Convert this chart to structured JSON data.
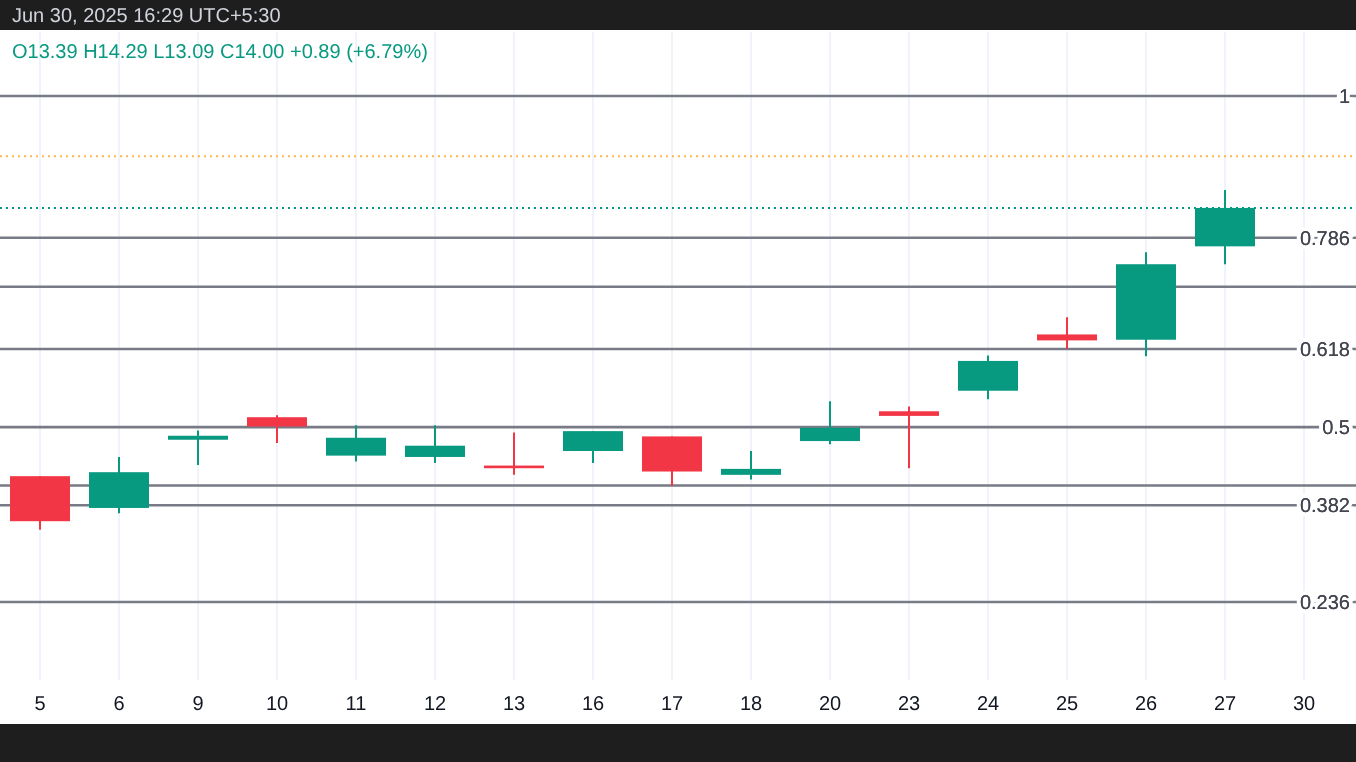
{
  "chart_data": {
    "type": "candlestick",
    "annotations": [
      "Jun 30, 2025 16:29 UTC+5:30",
      "O13.39 H14.29 L13.09 C14.00 +0.89 (+6.79%)"
    ],
    "categories": [
      "5",
      "6",
      "9",
      "10",
      "11",
      "12",
      "13",
      "16",
      "17",
      "18",
      "20",
      "23",
      "24",
      "25",
      "26",
      "27",
      "30"
    ],
    "ohlc": [
      [
        0.426,
        0.426,
        0.345,
        0.358
      ],
      [
        0.378,
        0.455,
        0.37,
        0.432
      ],
      [
        0.481,
        0.495,
        0.443,
        0.487
      ],
      [
        0.515,
        0.518,
        0.476,
        0.501
      ],
      [
        0.457,
        0.503,
        0.448,
        0.484
      ],
      [
        0.455,
        0.503,
        0.446,
        0.472
      ],
      [
        0.442,
        0.492,
        0.428,
        0.438
      ],
      [
        0.464,
        0.494,
        0.446,
        0.494
      ],
      [
        0.486,
        0.486,
        0.411,
        0.433
      ],
      [
        0.428,
        0.464,
        0.421,
        0.437
      ],
      [
        0.479,
        0.539,
        0.474,
        0.499
      ],
      [
        0.524,
        0.531,
        0.438,
        0.517
      ],
      [
        0.555,
        0.608,
        0.542,
        0.6
      ],
      [
        0.64,
        0.666,
        0.618,
        0.631
      ],
      [
        0.632,
        0.764,
        0.607,
        0.746
      ],
      [
        0.773,
        0.858,
        0.746,
        0.831
      ],
      null
    ],
    "colors": [
      "#f23645",
      "#089981",
      "#089981",
      "#f23645",
      "#089981",
      "#089981",
      "#f23645",
      "#089981",
      "#f23645",
      "#089981",
      "#089981",
      "#f23645",
      "#089981",
      "#f23645",
      "#089981",
      "#089981",
      null
    ],
    "ylim": [
      0.236,
      1
    ],
    "yticks": [
      0.236,
      0.382,
      0.5,
      0.618,
      0.786,
      1
    ],
    "grid": true,
    "ref_lines": [
      {
        "axis": "y",
        "value": 0.909,
        "color": "#ffb74d",
        "line_style": "dotted"
      },
      {
        "axis": "y",
        "value": 0.831,
        "color": "#089981",
        "line_style": "dotted"
      },
      {
        "axis": "y",
        "value": 0.712,
        "color": "#787b86"
      },
      {
        "axis": "y",
        "value": 0.412,
        "color": "#787b86"
      }
    ]
  }
}
